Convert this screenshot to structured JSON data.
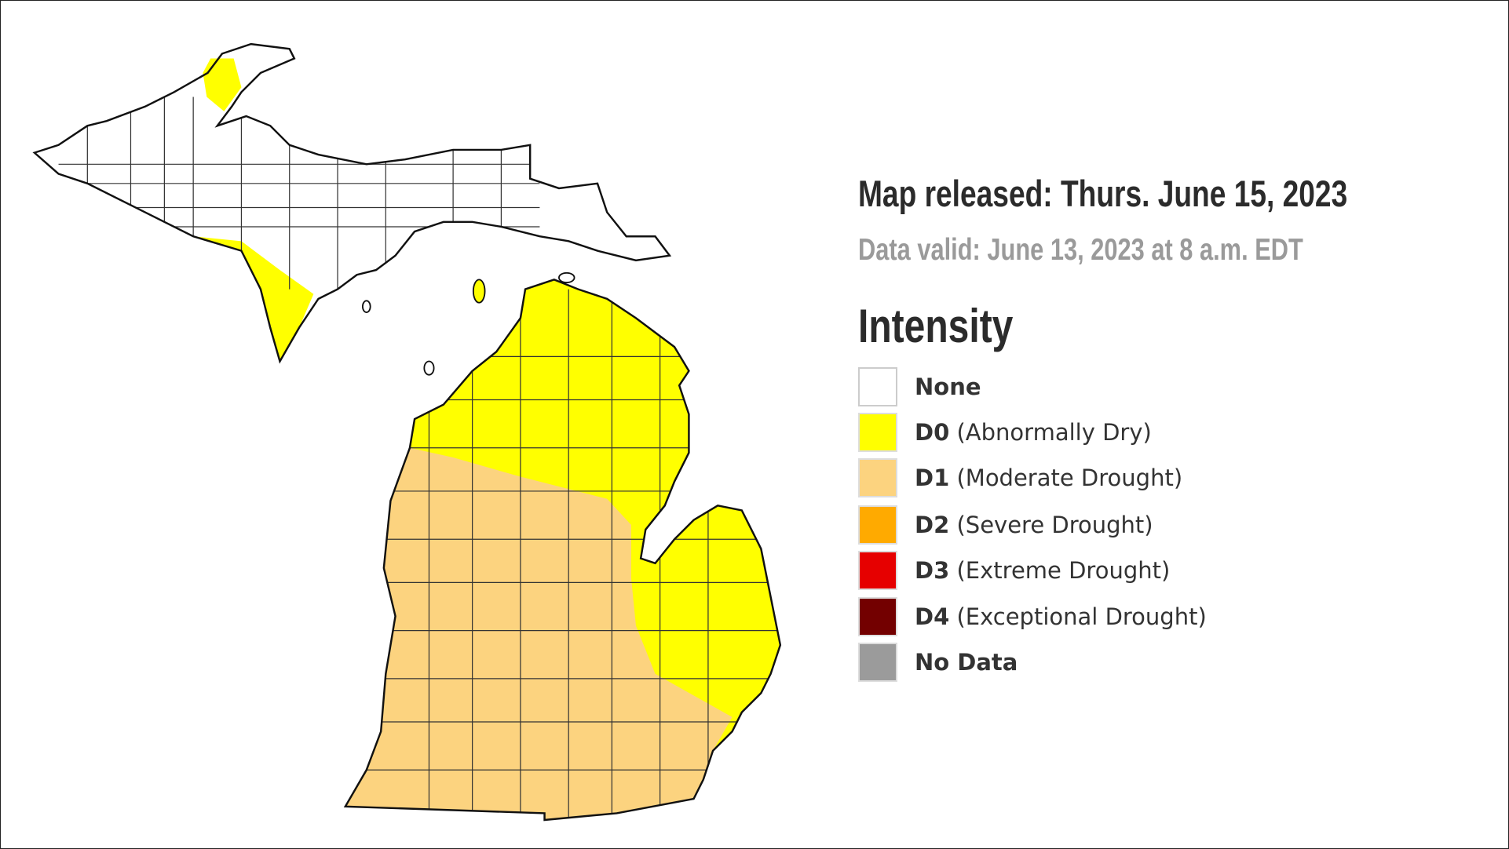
{
  "header": {
    "released": "Map released: Thurs. June 15, 2023",
    "valid": "Data valid: June 13, 2023 at 8 a.m. EDT"
  },
  "legend": {
    "title": "Intensity",
    "items": [
      {
        "code": "None",
        "label": "",
        "color": "#ffffff"
      },
      {
        "code": "D0",
        "label": "(Abnormally Dry)",
        "color": "#ffff00"
      },
      {
        "code": "D1",
        "label": "(Moderate Drought)",
        "color": "#fcd37f"
      },
      {
        "code": "D2",
        "label": "(Severe Drought)",
        "color": "#ffaa00"
      },
      {
        "code": "D3",
        "label": "(Extreme Drought)",
        "color": "#e60000"
      },
      {
        "code": "D4",
        "label": "(Exceptional Drought)",
        "color": "#730000"
      },
      {
        "code": "No Data",
        "label": "",
        "color": "#9b9b9b"
      }
    ]
  }
}
